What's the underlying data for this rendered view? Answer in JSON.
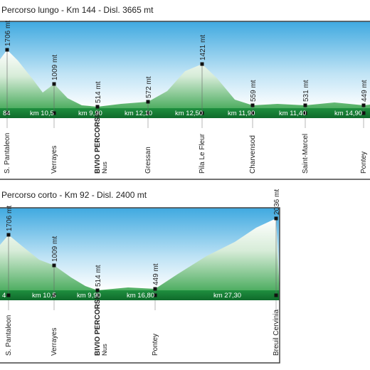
{
  "profiles": [
    {
      "title": "Percorso lungo - Km 144 - Disl. 3665 mt",
      "points": [
        {
          "elevation": "1706 mt",
          "place": "S. Pantaleon"
        },
        {
          "elevation": "1009 mt",
          "place": "Verrayes"
        },
        {
          "elevation": "514 mt",
          "place": "BIVIO PERCORSI",
          "sub": "Nus"
        },
        {
          "elevation": "572 mt",
          "place": "Gressan"
        },
        {
          "elevation": "1421 mt",
          "place": "Pila Le Fleur"
        },
        {
          "elevation": "559 mt",
          "place": "Charvensod"
        },
        {
          "elevation": "531 mt",
          "place": "Saint-Marcel"
        },
        {
          "elevation": "449 mt",
          "place": "Pontey"
        }
      ],
      "distances": [
        "84",
        "km 10,5",
        "km 9,90",
        "km 12,10",
        "km 12,50",
        "km 11,90",
        "km 11,40",
        "km 14,90"
      ]
    },
    {
      "title": "Percorso corto - Km 92 - Disl. 2400 mt",
      "points": [
        {
          "elevation": "1706 mt",
          "place": "S. Pantaleon"
        },
        {
          "elevation": "1009 mt",
          "place": "Verrayes"
        },
        {
          "elevation": "514 mt",
          "place": "BIVIO PERCORSI",
          "sub": "Nus"
        },
        {
          "elevation": "449 mt",
          "place": "Pontey"
        },
        {
          "elevation": "2036 mt",
          "place": "Breuil Cervinia"
        }
      ],
      "distances": [
        "4",
        "km 10,5",
        "km 9,90",
        "km 16,80",
        "km 27,30"
      ]
    }
  ]
}
